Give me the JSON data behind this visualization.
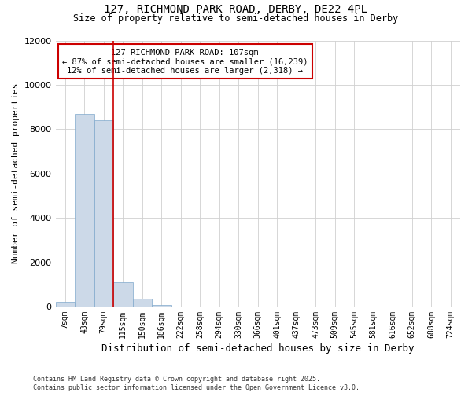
{
  "title_line1": "127, RICHMOND PARK ROAD, DERBY, DE22 4PL",
  "title_line2": "Size of property relative to semi-detached houses in Derby",
  "xlabel": "Distribution of semi-detached houses by size in Derby",
  "ylabel": "Number of semi-detached properties",
  "bin_labels": [
    "7sqm",
    "43sqm",
    "79sqm",
    "115sqm",
    "150sqm",
    "186sqm",
    "222sqm",
    "258sqm",
    "294sqm",
    "330sqm",
    "366sqm",
    "401sqm",
    "437sqm",
    "473sqm",
    "509sqm",
    "545sqm",
    "581sqm",
    "616sqm",
    "652sqm",
    "688sqm",
    "724sqm"
  ],
  "bar_heights": [
    200,
    8700,
    8400,
    1100,
    350,
    80,
    10,
    0,
    0,
    0,
    0,
    0,
    0,
    0,
    0,
    0,
    0,
    0,
    0,
    0,
    0
  ],
  "bar_color": "#ccd9e8",
  "bar_edge_color": "#7fa8cc",
  "grid_color": "#d0d0d0",
  "background_color": "#ffffff",
  "property_line_bin": 3,
  "property_line_color": "#cc0000",
  "annotation_text_line1": "127 RICHMOND PARK ROAD: 107sqm",
  "annotation_text_line2": "← 87% of semi-detached houses are smaller (16,239)",
  "annotation_text_line3": "12% of semi-detached houses are larger (2,318) →",
  "annotation_box_color": "#cc0000",
  "ylim": [
    0,
    12000
  ],
  "yticks": [
    0,
    2000,
    4000,
    6000,
    8000,
    10000,
    12000
  ],
  "footnote": "Contains HM Land Registry data © Crown copyright and database right 2025.\nContains public sector information licensed under the Open Government Licence v3.0."
}
